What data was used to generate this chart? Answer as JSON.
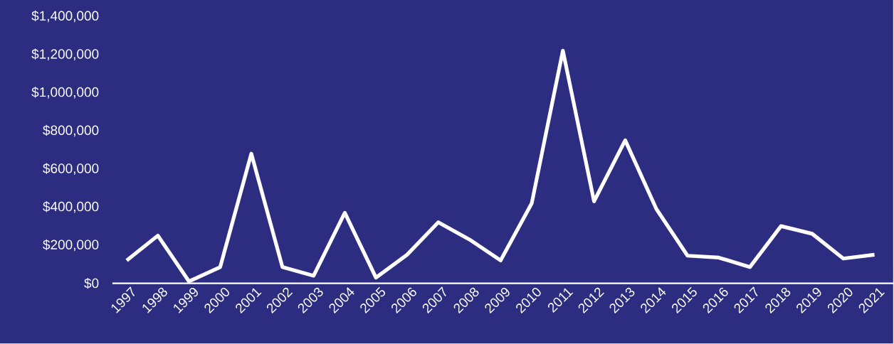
{
  "chart_data": {
    "type": "line",
    "categories": [
      "1997",
      "1998",
      "1999",
      "2000",
      "2001",
      "2002",
      "2003",
      "2004",
      "2005",
      "2006",
      "2007",
      "2008",
      "2009",
      "2010",
      "2011",
      "2012",
      "2013",
      "2014",
      "2015",
      "2016",
      "2017",
      "2018",
      "2019",
      "2020",
      "2021"
    ],
    "series": [
      {
        "color": "#ffffff",
        "values": [
          120000,
          250000,
          10000,
          85000,
          680000,
          85000,
          40000,
          370000,
          30000,
          150000,
          320000,
          230000,
          120000,
          420000,
          1220000,
          430000,
          750000,
          390000,
          145000,
          135000,
          85000,
          300000,
          260000,
          130000,
          150000
        ]
      }
    ],
    "ylim": [
      0,
      1400000
    ],
    "yticks": [
      {
        "value": 0,
        "label": "$0"
      },
      {
        "value": 200000,
        "label": "$200,000"
      },
      {
        "value": 400000,
        "label": "$400,000"
      },
      {
        "value": 600000,
        "label": "$600,000"
      },
      {
        "value": 800000,
        "label": "$800,000"
      },
      {
        "value": 1000000,
        "label": "$1,000,000"
      },
      {
        "value": 1200000,
        "label": "$1,200,000"
      },
      {
        "value": 1400000,
        "label": "$1,400,000"
      }
    ],
    "grid": false,
    "marker": "none",
    "line_style": "solid"
  }
}
